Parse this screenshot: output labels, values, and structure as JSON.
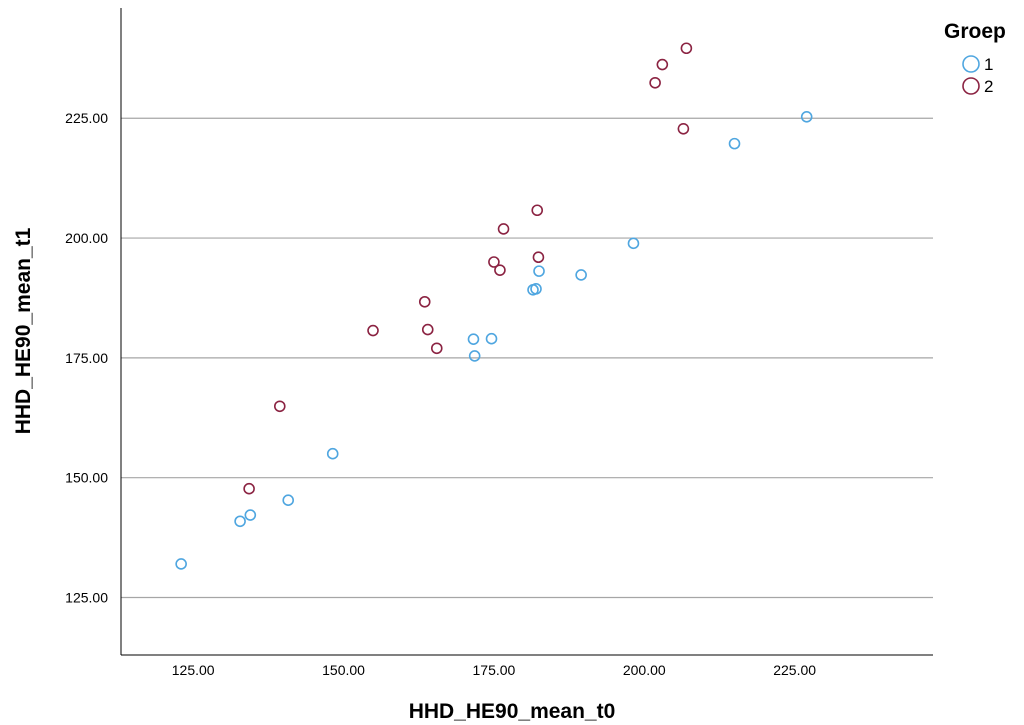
{
  "chart_data": {
    "type": "scatter",
    "xlabel": "HHD_HE90_mean_t0",
    "ylabel": "HHD_HE90_mean_t1",
    "xlim": [
      113,
      248
    ],
    "ylim": [
      113,
      248
    ],
    "x_ticks": [
      125,
      150,
      175,
      200,
      225
    ],
    "y_ticks": [
      125,
      150,
      175,
      200,
      225
    ],
    "x_tick_labels": [
      "125.00",
      "150.00",
      "175.00",
      "200.00",
      "225.00"
    ],
    "y_tick_labels": [
      "125.00",
      "150.00",
      "175.00",
      "200.00",
      "225.00"
    ],
    "grid": "horizontal",
    "legend": {
      "title": "Groep",
      "placement": "top-right"
    },
    "series": [
      {
        "name": "1",
        "color": "#4fa6e0",
        "points": [
          [
            123.0,
            132.0
          ],
          [
            132.8,
            140.9
          ],
          [
            134.5,
            142.2
          ],
          [
            140.8,
            145.3
          ],
          [
            148.2,
            155.0
          ],
          [
            171.8,
            175.4
          ],
          [
            171.6,
            178.9
          ],
          [
            174.6,
            179.0
          ],
          [
            181.5,
            189.2
          ],
          [
            182.0,
            189.4
          ],
          [
            182.5,
            193.1
          ],
          [
            189.5,
            192.3
          ],
          [
            198.2,
            198.9
          ],
          [
            215.0,
            219.7
          ],
          [
            227.0,
            225.3
          ]
        ]
      },
      {
        "name": "2",
        "color": "#8b2342",
        "points": [
          [
            134.3,
            147.7
          ],
          [
            139.4,
            164.9
          ],
          [
            154.9,
            180.7
          ],
          [
            163.5,
            186.7
          ],
          [
            164.0,
            180.9
          ],
          [
            165.5,
            177.0
          ],
          [
            175.0,
            195.0
          ],
          [
            176.0,
            193.3
          ],
          [
            176.6,
            201.9
          ],
          [
            182.2,
            205.8
          ],
          [
            182.4,
            196.0
          ],
          [
            201.8,
            232.4
          ],
          [
            203.0,
            236.2
          ],
          [
            206.5,
            222.8
          ],
          [
            207.0,
            239.6
          ]
        ]
      }
    ]
  }
}
